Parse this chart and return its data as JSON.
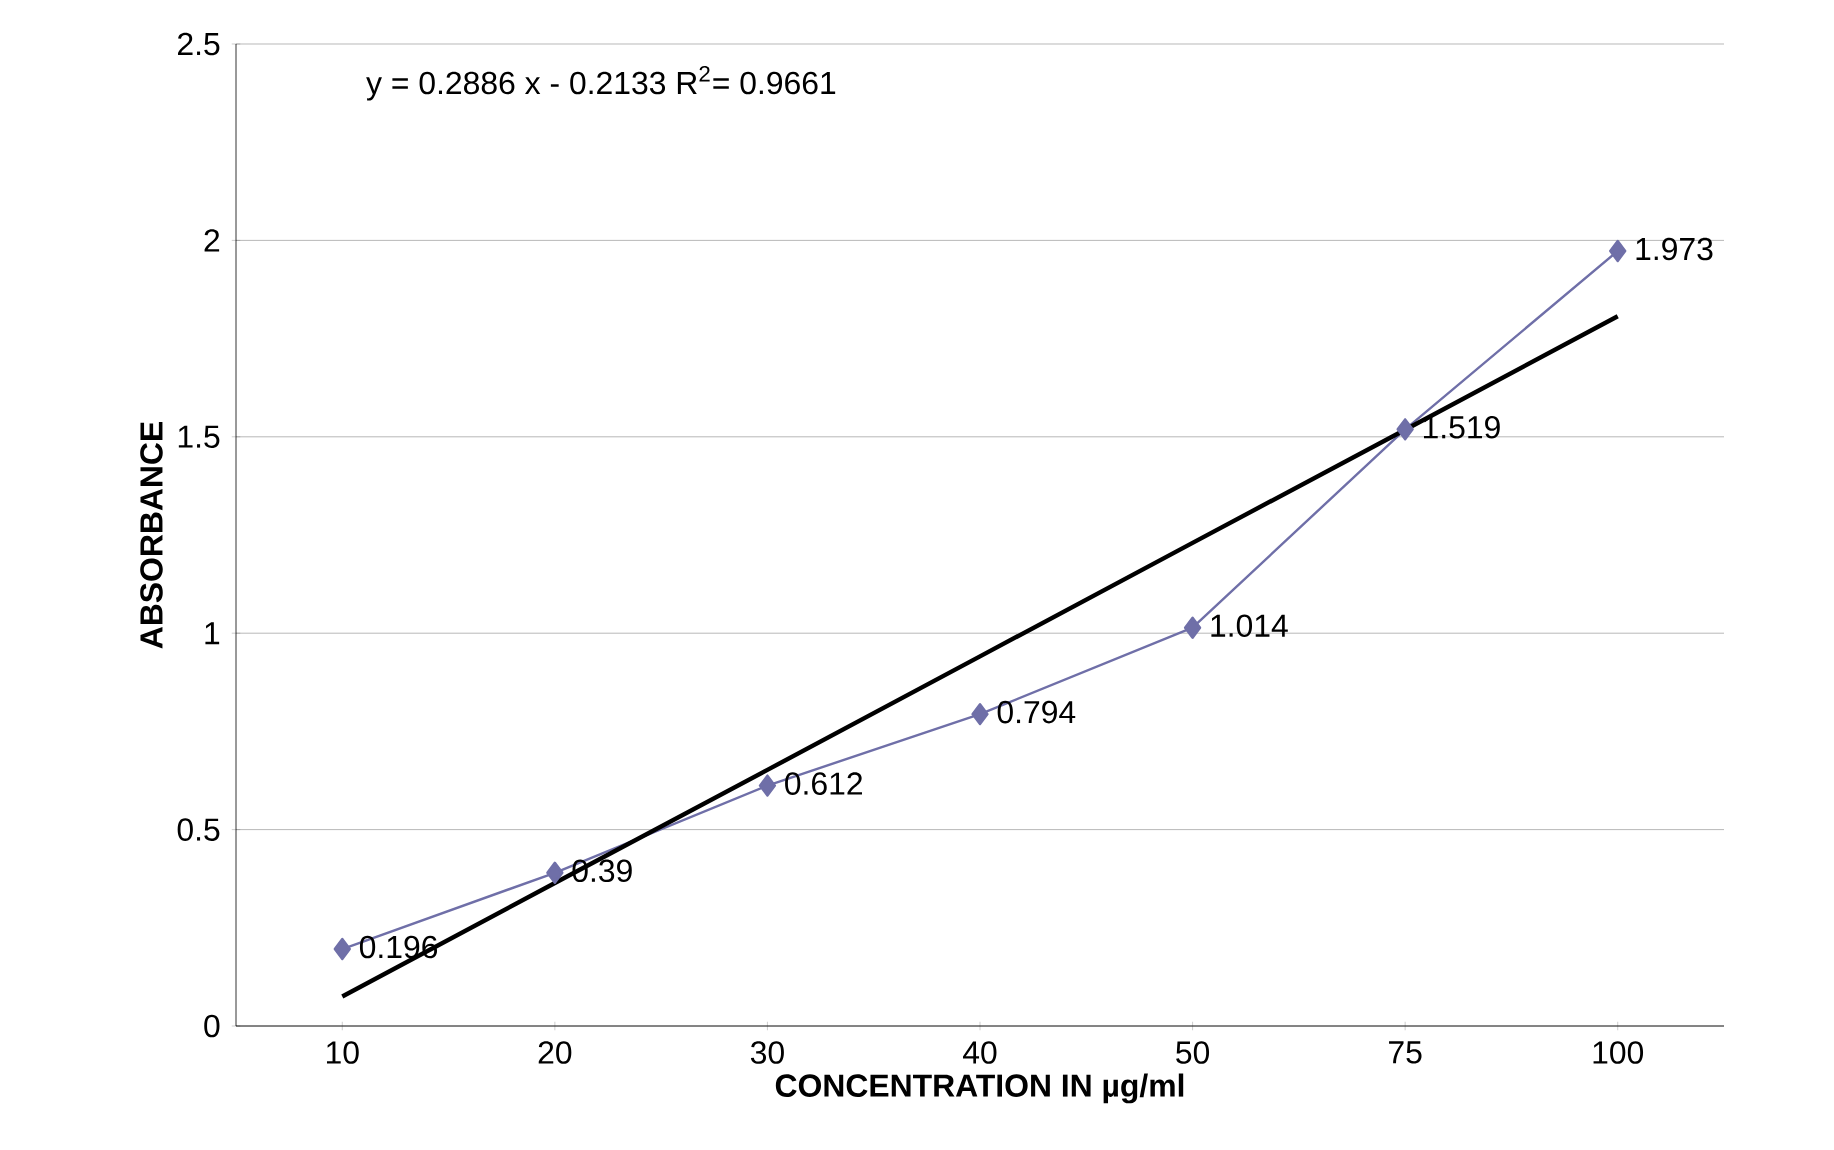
{
  "chart_data": {
    "type": "line",
    "xlabel": "CONCENTRATION IN µg/ml",
    "ylabel": "ABSORBANCE",
    "categories": [
      "10",
      "20",
      "30",
      "40",
      "50",
      "75",
      "100"
    ],
    "series": [
      {
        "color": "#6f6fa8",
        "marker": "diamond",
        "values": [
          0.196,
          0.39,
          0.612,
          0.794,
          1.014,
          1.519,
          1.973
        ],
        "value_labels": [
          "0.196",
          "0.39",
          "0.612",
          "0.794",
          "1.014",
          "1.519",
          "1.973"
        ]
      },
      {
        "color": "#000000",
        "marker": "none",
        "values": [
          0.075,
          0.364,
          0.652,
          0.941,
          1.23,
          1.518,
          1.807
        ]
      }
    ],
    "ylim": [
      0,
      2.5
    ],
    "yticks": [
      0,
      0.5,
      1,
      1.5,
      2,
      2.5
    ],
    "grid": "y",
    "annotations": [
      "y = 0.2886  x - 0.2133   R$^{2}$= 0.9661"
    ]
  }
}
